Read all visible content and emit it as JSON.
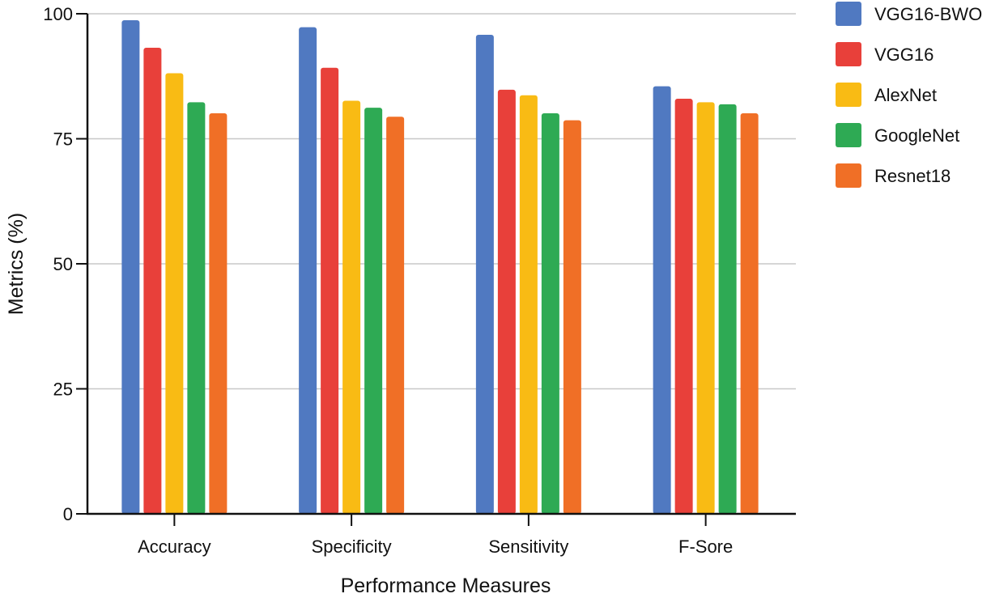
{
  "chart_data": {
    "type": "bar",
    "title": "",
    "xlabel": "Performance Measures",
    "ylabel": "Metrics (%)",
    "ylim": [
      0,
      100
    ],
    "yticks": [
      0,
      25,
      50,
      75,
      100
    ],
    "grid": true,
    "legend_position": "top-right",
    "categories": [
      "Accuracy",
      "Specificity",
      "Sensitivity",
      "F-Sore"
    ],
    "series": [
      {
        "name": "VGG16-BWO",
        "color": "#5079c1",
        "values": [
          98.7,
          97.3,
          95.8,
          85.5
        ]
      },
      {
        "name": "VGG16",
        "color": "#e8403a",
        "values": [
          93.2,
          89.2,
          84.8,
          83.0
        ]
      },
      {
        "name": "AlexNet",
        "color": "#f9bb14",
        "values": [
          88.1,
          82.6,
          83.7,
          82.3
        ]
      },
      {
        "name": "GoogleNet",
        "color": "#2eaa54",
        "values": [
          82.3,
          81.2,
          80.1,
          81.9
        ]
      },
      {
        "name": "Resnet18",
        "color": "#f06f26",
        "values": [
          80.1,
          79.4,
          78.7,
          80.1
        ]
      }
    ]
  }
}
